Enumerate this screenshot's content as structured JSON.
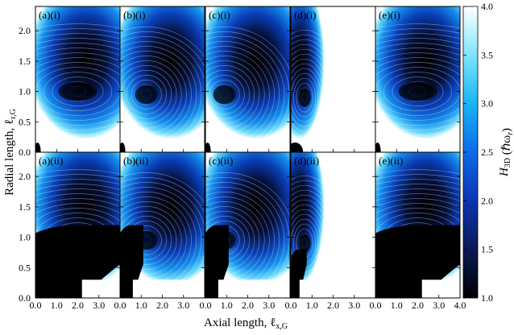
{
  "chart_data": {
    "type": "heatmap",
    "title": "",
    "xlabel": "Axial length, ℓ",
    "xlabel_sub": "x,G",
    "ylabel": "Radial length, ℓ",
    "ylabel_sub": "r,G",
    "xlim": [
      0,
      4
    ],
    "ylim": [
      0,
      2.4
    ],
    "x_ticks": [
      "0.0",
      "1.0",
      "2.0",
      "3.0",
      "4.0"
    ],
    "x_minor_ticks": [
      "0.0",
      "1.0",
      "2.0",
      "3.0"
    ],
    "y_ticks": [
      "0.0",
      "0.5",
      "1.0",
      "1.5",
      "2.0"
    ],
    "rows": [
      "(i)",
      "(ii)"
    ],
    "cols": [
      "(a)",
      "(b)",
      "(c)",
      "(d)",
      "(e)"
    ],
    "panel_labels": [
      [
        "(a)(i)",
        "(b)(i)",
        "(c)(i)",
        "(d)(i)",
        "(e)(i)"
      ],
      [
        "(a)(ii)",
        "(b)(ii)",
        "(c)(ii)",
        "(d)(ii)",
        "(e)(ii)"
      ]
    ],
    "panel_xmax": [
      4.0,
      4.0,
      4.0,
      1.2,
      4.0
    ],
    "colorbar": {
      "label": "H",
      "label_sub": "3D",
      "label_unit": "(ℏω",
      "label_unit_sub": "r",
      "label_unit_end": ")",
      "range": [
        1.0,
        4.0
      ],
      "ticks": [
        "1.0",
        "1.5",
        "2.0",
        "2.5",
        "3.0",
        "3.5",
        "4.0"
      ],
      "colors": [
        "#000000",
        "#0a1a55",
        "#0b35b0",
        "#0e6ae8",
        "#1ab4f5",
        "#7fe4fb",
        "#ffffff"
      ]
    },
    "minima_row_i": [
      {
        "x": 2.0,
        "y": 1.0,
        "value": 1.0
      },
      {
        "x": 1.25,
        "y": 0.95,
        "value": 1.0
      },
      {
        "x": 0.9,
        "y": 0.95,
        "value": 1.0
      },
      {
        "x": 0.65,
        "y": 0.9,
        "value": 1.0
      },
      {
        "x": 2.0,
        "y": 1.0,
        "value": 1.0
      }
    ]
  }
}
